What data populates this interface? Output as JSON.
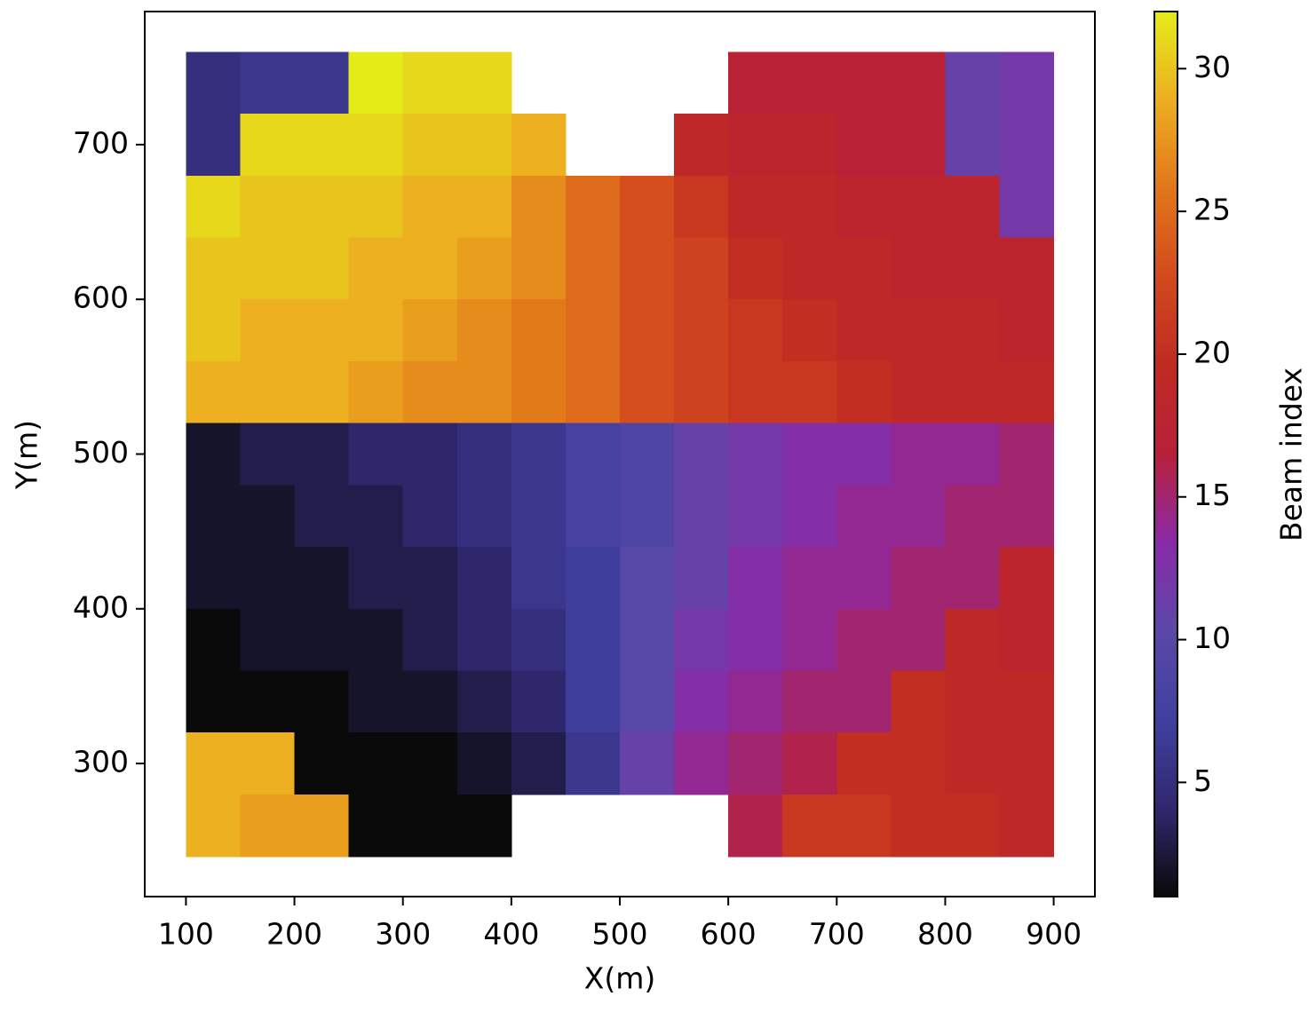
{
  "chart_data": {
    "type": "heatmap",
    "xlabel": "X(m)",
    "ylabel": "Y(m)",
    "x": [
      125,
      175,
      225,
      275,
      325,
      375,
      425,
      475,
      525,
      575,
      625,
      675,
      725,
      775,
      825,
      875
    ],
    "y": [
      740,
      700,
      660,
      620,
      580,
      540,
      500,
      460,
      420,
      380,
      340,
      300,
      260
    ],
    "values": [
      [
        5,
        6,
        6,
        32,
        31,
        31,
        null,
        null,
        null,
        null,
        17,
        17,
        17,
        17,
        11,
        12
      ],
      [
        5,
        31,
        31,
        31,
        30,
        30,
        29,
        null,
        null,
        19,
        18,
        18,
        17,
        17,
        11,
        12
      ],
      [
        31,
        30,
        30,
        30,
        29,
        29,
        27,
        25,
        23,
        21,
        19,
        19,
        18,
        18,
        18,
        12
      ],
      [
        30,
        30,
        30,
        29,
        29,
        28,
        27,
        25,
        23,
        22,
        20,
        19,
        19,
        18,
        18,
        18
      ],
      [
        30,
        29,
        29,
        29,
        28,
        27,
        26,
        25,
        23,
        22,
        21,
        20,
        19,
        19,
        19,
        18
      ],
      [
        29,
        29,
        29,
        28,
        27,
        27,
        26,
        25,
        23,
        22,
        21,
        21,
        20,
        19,
        19,
        19
      ],
      [
        2,
        3,
        3,
        4,
        4,
        5,
        6,
        8,
        9,
        11,
        12,
        13,
        13,
        14,
        14,
        15
      ],
      [
        2,
        2,
        3,
        3,
        4,
        5,
        6,
        8,
        9,
        11,
        12,
        13,
        14,
        14,
        15,
        15
      ],
      [
        2,
        2,
        2,
        3,
        3,
        4,
        6,
        7,
        10,
        11,
        13,
        14,
        14,
        15,
        15,
        18
      ],
      [
        1,
        2,
        2,
        2,
        3,
        4,
        5,
        7,
        10,
        12,
        13,
        14,
        15,
        15,
        19,
        18
      ],
      [
        1,
        1,
        1,
        2,
        2,
        3,
        4,
        7,
        10,
        13,
        14,
        15,
        15,
        20,
        19,
        19
      ],
      [
        29,
        29,
        1,
        1,
        1,
        2,
        3,
        6,
        11,
        14,
        15,
        16,
        20,
        20,
        19,
        19
      ],
      [
        29,
        28,
        28,
        1,
        1,
        1,
        null,
        null,
        null,
        null,
        16,
        21,
        21,
        20,
        20,
        19
      ]
    ],
    "xlim": [
      62,
      938
    ],
    "ylim": [
      214,
      786
    ],
    "xticks": [
      100,
      200,
      300,
      400,
      500,
      600,
      700,
      800,
      900
    ],
    "yticks": [
      300,
      400,
      500,
      600,
      700
    ],
    "colormap": [
      "#0a0a0a",
      "#30286e",
      "#4040a0",
      "#5a48a8",
      "#8a2aa8",
      "#b8203a",
      "#c02a22",
      "#d24a1e",
      "#e2761a",
      "#ecae20",
      "#e4ec18"
    ],
    "colorbar": {
      "label": "Beam index",
      "lim": [
        1,
        32
      ],
      "ticks": [
        5,
        10,
        15,
        20,
        25,
        30
      ]
    }
  }
}
